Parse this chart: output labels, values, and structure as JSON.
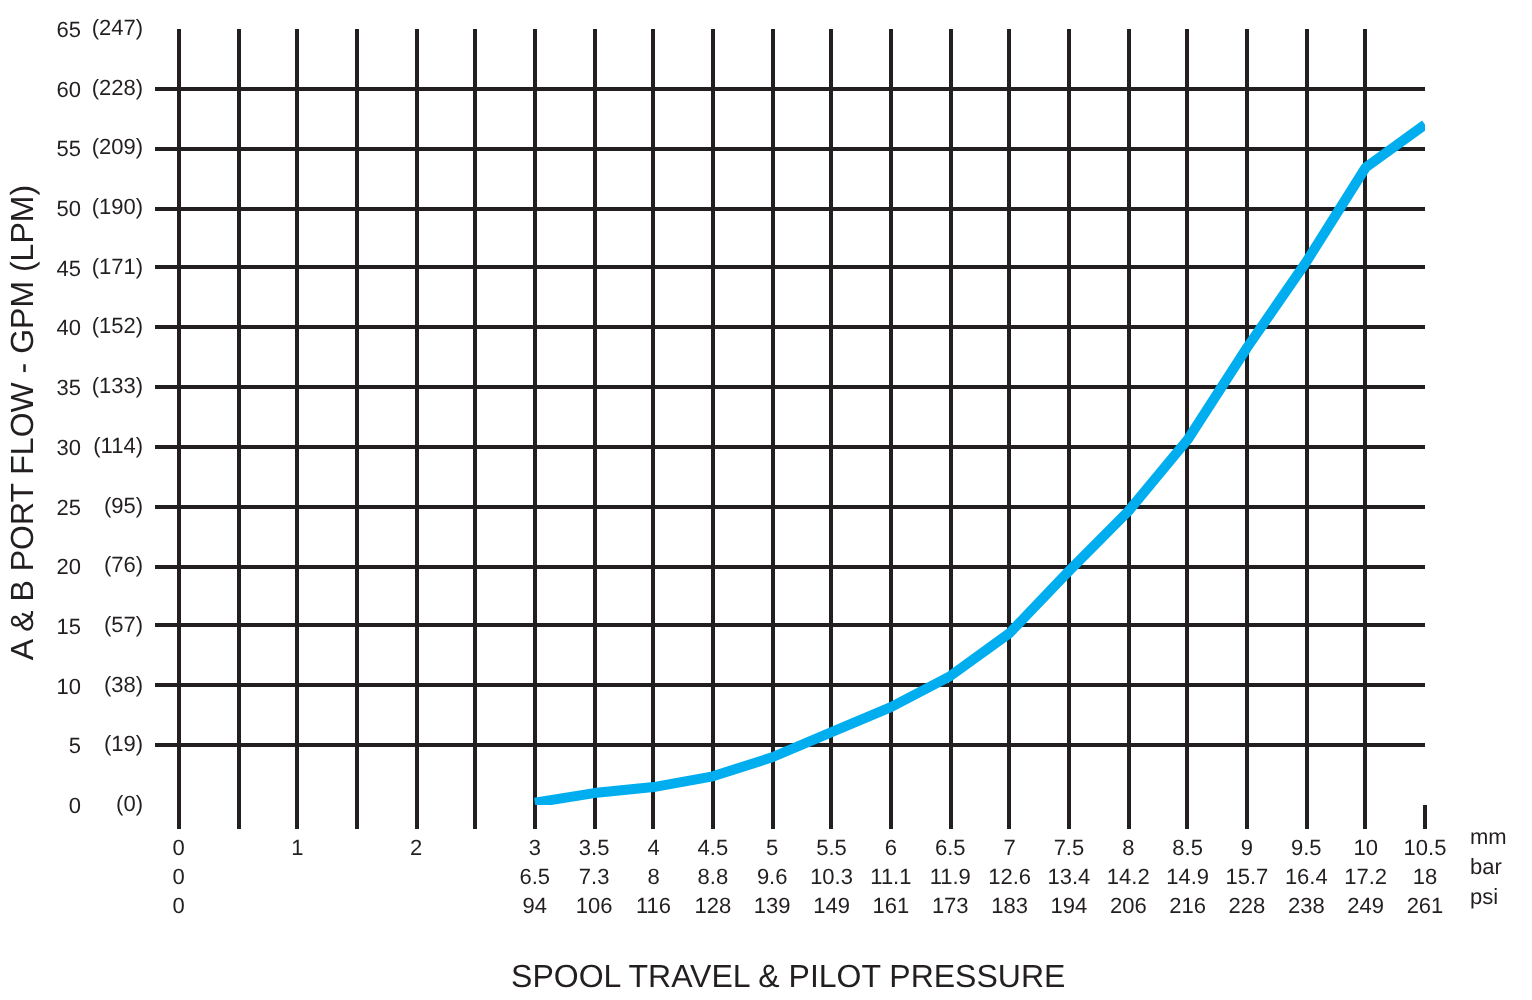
{
  "chart_data": {
    "type": "line",
    "xlabel": "SPOOL TRAVEL & PILOT PRESSURE",
    "ylabel": "A & B  PORT FLOW - GPM (LPM)",
    "x": [
      3,
      3.5,
      4,
      4.5,
      5,
      5.5,
      6,
      6.5,
      7,
      7.5,
      8,
      8.5,
      9,
      9.5,
      10,
      10.5
    ],
    "series": [
      {
        "color": "#00aeef",
        "values": [
          0.2,
          1.0,
          1.5,
          2.4,
          4.0,
          6.1,
          8.2,
          10.8,
          14.4,
          19.6,
          24.6,
          30.6,
          38.3,
          45.5,
          53.4,
          57.0
        ]
      }
    ],
    "xlim": [
      -0.2,
      10.5
    ],
    "ylim": [
      0,
      65
    ],
    "xticks": [
      {
        "value": 0,
        "label": "0\n0\n0"
      },
      {
        "value": 0.5,
        "label": null
      },
      {
        "value": 1,
        "label": "1"
      },
      {
        "value": 1.5,
        "label": null
      },
      {
        "value": 2,
        "label": "2"
      },
      {
        "value": 2.5,
        "label": null
      },
      {
        "value": 3,
        "label": "3\n6.5\n94"
      },
      {
        "value": 3.5,
        "label": "3.5\n7.3\n106"
      },
      {
        "value": 4,
        "label": "4\n8\n116"
      },
      {
        "value": 4.5,
        "label": "4.5\n8.8\n128"
      },
      {
        "value": 5,
        "label": "5\n9.6\n139"
      },
      {
        "value": 5.5,
        "label": "5.5\n10.3\n149"
      },
      {
        "value": 6,
        "label": "6\n11.1\n161"
      },
      {
        "value": 6.5,
        "label": "6.5\n11.9\n173"
      },
      {
        "value": 7,
        "label": "7\n12.6\n183"
      },
      {
        "value": 7.5,
        "label": "7.5\n13.4\n194"
      },
      {
        "value": 8,
        "label": "8\n14.2\n206"
      },
      {
        "value": 8.5,
        "label": "8.5\n14.9\n216"
      },
      {
        "value": 9,
        "label": "9\n15.7\n228"
      },
      {
        "value": 9.5,
        "label": "9.5\n16.4\n238"
      },
      {
        "value": 10,
        "label": "10\n17.2\n249"
      },
      {
        "value": 10.5,
        "label": "10.5\n18\n261"
      }
    ],
    "yticks": [
      0,
      5,
      10,
      15,
      20,
      25,
      30,
      35,
      40,
      45,
      50,
      55,
      60,
      65
    ],
    "y2lim": [
      0,
      247
    ],
    "y2ticks": [
      {
        "value": 0,
        "label": "(0)"
      },
      {
        "value": 19,
        "label": "(19)"
      },
      {
        "value": 38,
        "label": "(38)"
      },
      {
        "value": 57,
        "label": "(57)"
      },
      {
        "value": 76,
        "label": "(76)"
      },
      {
        "value": 95,
        "label": "(95)"
      },
      {
        "value": 114,
        "label": "(114)"
      },
      {
        "value": 133,
        "label": "(133)"
      },
      {
        "value": 152,
        "label": "(152)"
      },
      {
        "value": 171,
        "label": "(171)"
      },
      {
        "value": 190,
        "label": "(190)"
      },
      {
        "value": 209,
        "label": "(209)"
      },
      {
        "value": 228,
        "label": "(228)"
      },
      {
        "value": 247,
        "label": "(247)"
      }
    ],
    "annotations": [
      "mm",
      "bar",
      "psi"
    ],
    "grid": true,
    "marker": "none",
    "line_style": "solid"
  }
}
